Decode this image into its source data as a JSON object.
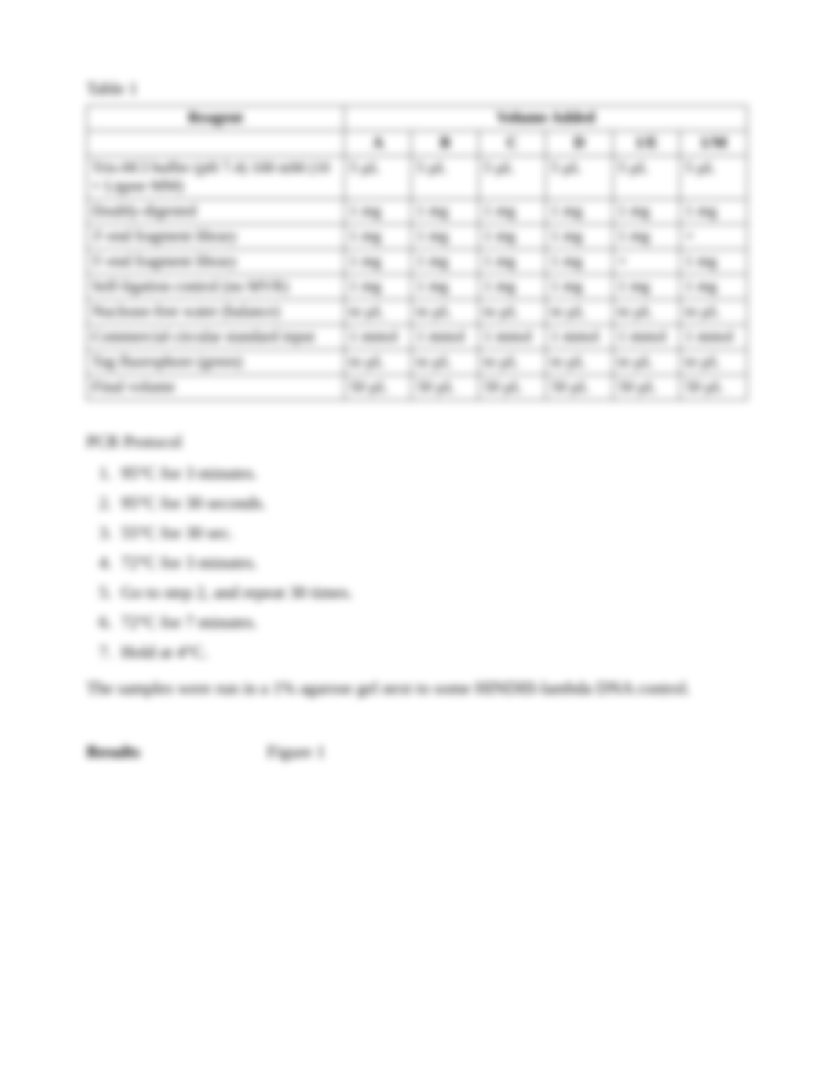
{
  "caption": "Table 1",
  "headers": {
    "reagent": "Reagent",
    "volume": "Volume Added"
  },
  "subheaders": [
    "A",
    "B",
    "C",
    "D",
    "1/E",
    "1/M"
  ],
  "rows": [
    {
      "label": "Tris-HCl buffer (pH 7.4) 100 mM (10 × Ligase MM)",
      "cells": [
        "5 µL",
        "5 µL",
        "5 µL",
        "5 µL",
        "5 µL",
        "5 µL"
      ]
    },
    {
      "label": "Doubly-digested",
      "cells": [
        "1 mg",
        "1 mg",
        "1 mg",
        "1 mg",
        "1 mg",
        "1 mg"
      ]
    },
    {
      "label": "3′-end fragment library",
      "cells": [
        "1 mg",
        "1 mg",
        "1 mg",
        "1 mg",
        "1 mg",
        "×"
      ]
    },
    {
      "label": "5′-end fragment library",
      "cells": [
        "1 mg",
        "1 mg",
        "1 mg",
        "1 mg",
        "×",
        "1 mg"
      ]
    },
    {
      "label": "Self-ligation control (no MVR)",
      "cells": [
        "1 mg",
        "1 mg",
        "1 mg",
        "1 mg",
        "1 mg",
        "1 mg"
      ]
    },
    {
      "label": "Nuclease-free water (balance)",
      "cells": [
        "to µL",
        "to µL",
        "to µL",
        "to µL",
        "to µL",
        "to µL"
      ]
    },
    {
      "label": "Commercial circular standard input",
      "cells": [
        "1 mmol",
        "1 mmol",
        "1 mmol",
        "1 mmol",
        "1 mmol",
        "1 mmol"
      ]
    },
    {
      "label": "Tag fluorophore (green)",
      "cells": [
        "to µL",
        "to µL",
        "to µL",
        "to µL",
        "to µL",
        "to µL"
      ]
    },
    {
      "label": "Final volume",
      "cells": [
        "50 µL",
        "50 µL",
        "50 µL",
        "50 µL",
        "50 µL",
        "50 µL"
      ]
    }
  ],
  "protocolTitle": "PCR Protocol",
  "protocol": [
    "95°C for 3 minutes.",
    "95°C for 30 seconds.",
    "55°C for 30 sec.",
    "72°C for 3 minutes.",
    "Go to step 2, and repeat 30 times.",
    "72°C for 7 minutes.",
    "Hold at 4°C."
  ],
  "note": "The samples were run in a 1% agarose gel next to some HINDIII-lambda DNA control.",
  "resultsLabel": "Results",
  "figureLabel": "Figure 1"
}
